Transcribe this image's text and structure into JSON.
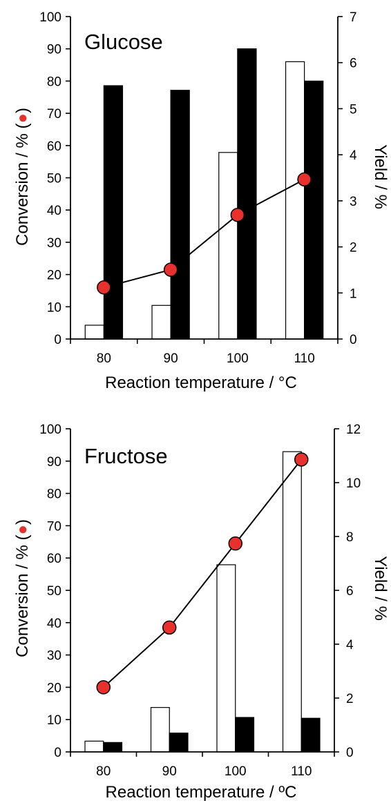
{
  "colors": {
    "conversion_marker": "#e8312c",
    "bar_open_fill": "#ffffff",
    "bar_solid_fill": "#000000",
    "line": "#000000"
  },
  "chart_data": [
    {
      "type": "bar",
      "title": "Glucose",
      "xlabel": "Reaction temperature / °C",
      "ylabel": "Conversion / % (",
      "ylabel_marker": "●",
      "ylabel_end": ")",
      "y2label": "Yield / %",
      "categories": [
        "80",
        "90",
        "100",
        "110"
      ],
      "ylim": [
        0,
        100
      ],
      "y_ticks": [
        "0",
        "10",
        "20",
        "30",
        "40",
        "50",
        "60",
        "70",
        "80",
        "90",
        "100"
      ],
      "y2lim": [
        0,
        7
      ],
      "y2_ticks": [
        "0",
        "1",
        "2",
        "3",
        "4",
        "5",
        "6",
        "7"
      ],
      "series": [
        {
          "kind": "bar-open",
          "axis": "right",
          "values": [
            0.3,
            0.73,
            4.05,
            6.02
          ]
        },
        {
          "kind": "bar-solid",
          "axis": "right",
          "values": [
            5.5,
            5.4,
            6.3,
            5.6
          ]
        },
        {
          "kind": "line-marker",
          "axis": "left",
          "values": [
            16,
            21.5,
            38.5,
            49.5
          ]
        }
      ],
      "grid": false
    },
    {
      "type": "bar",
      "title": "Fructose",
      "xlabel": "Reaction temperature / ºC",
      "ylabel": "Conversion / % (",
      "ylabel_marker": "●",
      "ylabel_end": ")",
      "y2label": "Yield / %",
      "categories": [
        "80",
        "90",
        "100",
        "110"
      ],
      "ylim": [
        0,
        100
      ],
      "y_ticks": [
        "0",
        "10",
        "20",
        "30",
        "40",
        "50",
        "60",
        "70",
        "80",
        "90",
        "100"
      ],
      "y2lim": [
        0,
        12
      ],
      "y2_ticks": [
        "0",
        "2",
        "4",
        "6",
        "8",
        "10",
        "12"
      ],
      "series": [
        {
          "kind": "bar-open",
          "axis": "right",
          "values": [
            0.4,
            1.65,
            6.95,
            11.15
          ]
        },
        {
          "kind": "bar-solid",
          "axis": "right",
          "values": [
            0.35,
            0.7,
            1.28,
            1.25
          ]
        },
        {
          "kind": "line-marker",
          "axis": "left",
          "values": [
            20,
            38.5,
            64.5,
            90.5
          ]
        }
      ],
      "grid": false
    }
  ]
}
